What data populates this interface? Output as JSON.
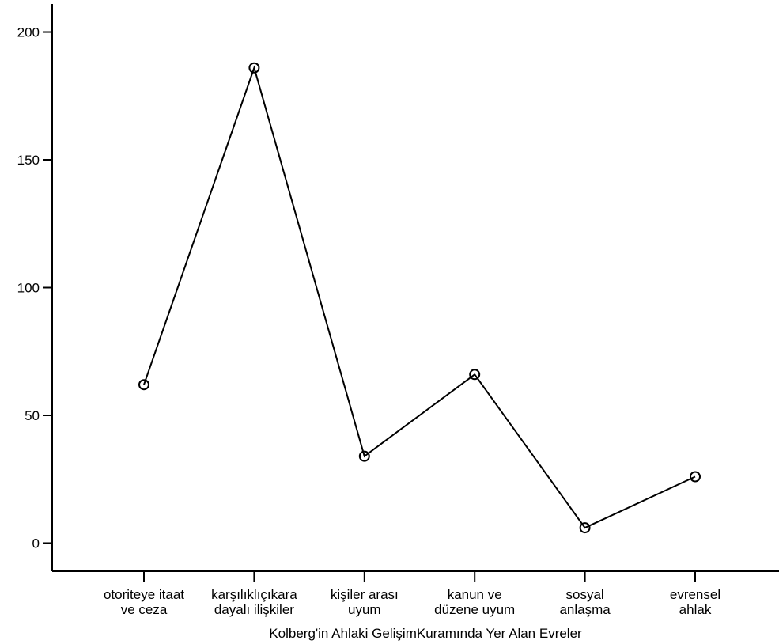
{
  "chart_data": {
    "type": "line",
    "title": "",
    "xlabel": "Kolberg'in Ahlaki GelişimKuramında Yer Alan Evreler",
    "ylabel": "",
    "categories": [
      [
        "otoriteye itaat",
        "ve ceza"
      ],
      [
        "karşılıklıçıkara",
        "dayalı ilişkiler"
      ],
      [
        "kişiler arası",
        "uyum"
      ],
      [
        "kanun ve",
        "düzene uyum"
      ],
      [
        "sosyal",
        "anlaşma"
      ],
      [
        "evrensel",
        "ahlak"
      ]
    ],
    "series": [
      {
        "values": [
          62,
          186,
          34,
          66,
          6,
          26
        ],
        "marker": "circle",
        "color": "#000000"
      }
    ],
    "ylim": [
      -11,
      211
    ],
    "yticks": [
      0,
      50,
      100,
      150,
      200
    ],
    "grid": false,
    "legend": "none"
  }
}
